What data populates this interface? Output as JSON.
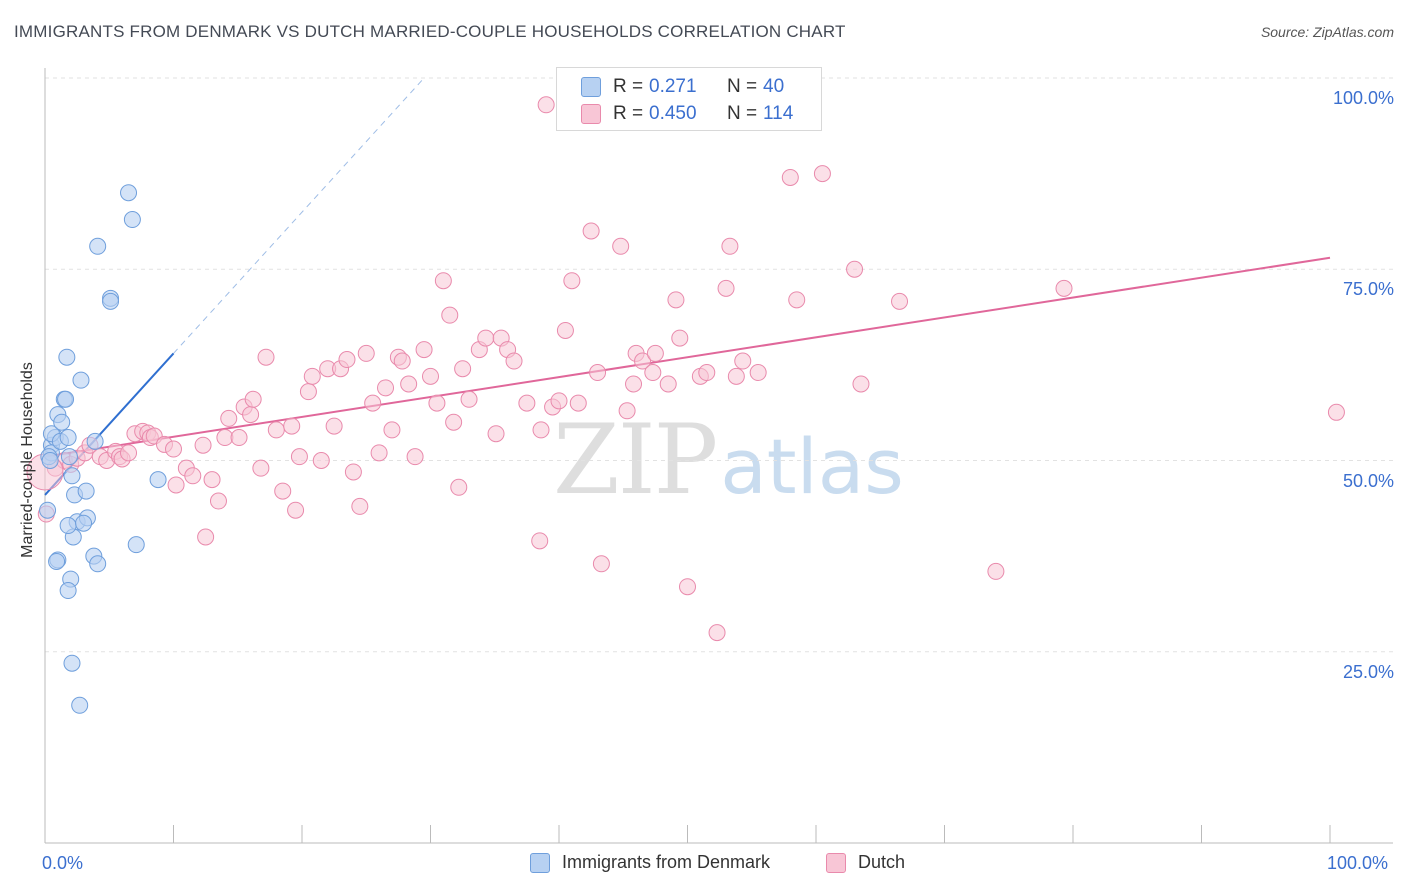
{
  "title": "IMMIGRANTS FROM DENMARK VS DUTCH MARRIED-COUPLE HOUSEHOLDS CORRELATION CHART",
  "source": "Source: ZipAtlas.com",
  "watermark": {
    "zip": "ZIP",
    "atlas": "atlas"
  },
  "legend": {
    "r_label": "R =",
    "n_label": "N =",
    "series": [
      {
        "r": "0.271",
        "n": "40"
      },
      {
        "r": "0.450",
        "n": "114"
      }
    ]
  },
  "chart_data": {
    "type": "scatter",
    "title": "IMMIGRANTS FROM DENMARK VS DUTCH MARRIED-COUPLE HOUSEHOLDS CORRELATION CHART",
    "xlabel": "",
    "ylabel": "Married-couple Households",
    "xlim": [
      0,
      100
    ],
    "ylim": [
      0,
      100
    ],
    "x_tick_labels": [
      "0.0%",
      "100.0%"
    ],
    "y_ticks": [
      25,
      50,
      75,
      100
    ],
    "y_tick_labels": [
      "25.0%",
      "50.0%",
      "75.0%",
      "100.0%"
    ],
    "colors": {
      "blue_fill": "#b7d1f2",
      "blue_stroke": "#6f9fdc",
      "blue_line": "#2f6fd0",
      "pink_fill": "#f8c6d6",
      "pink_stroke": "#e98aac",
      "pink_line": "#e0679a",
      "grid": "#e2e2e2",
      "axis_text": "#3b6fcf"
    },
    "series": [
      {
        "name": "Immigrants from Denmark",
        "trend": {
          "x0": 0.0,
          "y0": 45.5,
          "x1": 10.0,
          "y1": 64.0,
          "dash_to_x": 29.5,
          "dash_to_y": 100.0
        },
        "points": [
          [
            0.5,
            52.0
          ],
          [
            0.5,
            51.0
          ],
          [
            0.3,
            50.5
          ],
          [
            0.8,
            53.0
          ],
          [
            0.5,
            53.5
          ],
          [
            1.0,
            56.0
          ],
          [
            1.3,
            55.0
          ],
          [
            1.2,
            52.5
          ],
          [
            1.5,
            58.0
          ],
          [
            1.6,
            58.0
          ],
          [
            1.7,
            63.5
          ],
          [
            1.8,
            53.0
          ],
          [
            1.9,
            50.5
          ],
          [
            2.1,
            48.0
          ],
          [
            2.3,
            45.5
          ],
          [
            2.5,
            42.0
          ],
          [
            2.2,
            40.0
          ],
          [
            1.8,
            41.5
          ],
          [
            1.0,
            37.0
          ],
          [
            0.9,
            36.8
          ],
          [
            2.0,
            34.5
          ],
          [
            1.8,
            33.0
          ],
          [
            2.1,
            23.5
          ],
          [
            2.7,
            18.0
          ],
          [
            2.8,
            60.5
          ],
          [
            3.3,
            42.5
          ],
          [
            3.2,
            46.0
          ],
          [
            3.8,
            37.5
          ],
          [
            4.1,
            36.5
          ],
          [
            3.9,
            52.5
          ],
          [
            3.0,
            41.8
          ],
          [
            4.1,
            78.0
          ],
          [
            5.1,
            71.2
          ],
          [
            5.1,
            70.8
          ],
          [
            6.5,
            85.0
          ],
          [
            6.8,
            81.5
          ],
          [
            7.1,
            39.0
          ],
          [
            8.8,
            47.5
          ],
          [
            0.2,
            43.5
          ],
          [
            0.4,
            50.0
          ]
        ]
      },
      {
        "name": "Dutch",
        "trend": {
          "x0": 0.0,
          "y0": 50.5,
          "x1": 100.0,
          "y1": 76.5
        },
        "points": [
          [
            0.1,
            43.0
          ],
          [
            0.8,
            49.0
          ],
          [
            1.5,
            50.0
          ],
          [
            2.0,
            49.5
          ],
          [
            2.5,
            50.3
          ],
          [
            3.1,
            51.0
          ],
          [
            3.5,
            52.0
          ],
          [
            4.3,
            50.5
          ],
          [
            4.8,
            50.0
          ],
          [
            5.5,
            51.2
          ],
          [
            5.8,
            50.5
          ],
          [
            6.0,
            50.2
          ],
          [
            6.5,
            51.0
          ],
          [
            7.0,
            53.5
          ],
          [
            7.6,
            53.8
          ],
          [
            8.0,
            53.6
          ],
          [
            8.2,
            53.0
          ],
          [
            8.5,
            53.2
          ],
          [
            9.3,
            52.1
          ],
          [
            10.0,
            51.5
          ],
          [
            10.2,
            46.8
          ],
          [
            11.0,
            49.0
          ],
          [
            11.5,
            48.0
          ],
          [
            12.3,
            52.0
          ],
          [
            12.5,
            40.0
          ],
          [
            13.0,
            47.5
          ],
          [
            13.5,
            44.7
          ],
          [
            14.0,
            53.0
          ],
          [
            14.3,
            55.5
          ],
          [
            15.1,
            53.0
          ],
          [
            15.5,
            57.0
          ],
          [
            16.0,
            56.0
          ],
          [
            16.2,
            58.0
          ],
          [
            16.8,
            49.0
          ],
          [
            17.2,
            63.5
          ],
          [
            18.0,
            54.0
          ],
          [
            18.5,
            46.0
          ],
          [
            19.2,
            54.5
          ],
          [
            19.5,
            43.5
          ],
          [
            19.8,
            50.5
          ],
          [
            20.5,
            59.0
          ],
          [
            20.8,
            61.0
          ],
          [
            21.5,
            50.0
          ],
          [
            22.0,
            62.0
          ],
          [
            22.5,
            54.5
          ],
          [
            23.0,
            62.0
          ],
          [
            23.5,
            63.2
          ],
          [
            24.0,
            48.5
          ],
          [
            24.5,
            44.0
          ],
          [
            25.0,
            64.0
          ],
          [
            25.5,
            57.5
          ],
          [
            26.0,
            51.0
          ],
          [
            26.5,
            59.5
          ],
          [
            27.0,
            54.0
          ],
          [
            27.5,
            63.5
          ],
          [
            27.8,
            63.0
          ],
          [
            28.3,
            60.0
          ],
          [
            28.8,
            50.5
          ],
          [
            29.5,
            64.5
          ],
          [
            30.0,
            61.0
          ],
          [
            30.5,
            57.5
          ],
          [
            31.0,
            73.5
          ],
          [
            31.5,
            69.0
          ],
          [
            31.8,
            55.0
          ],
          [
            32.2,
            46.5
          ],
          [
            32.5,
            62.0
          ],
          [
            33.0,
            58.0
          ],
          [
            33.8,
            64.5
          ],
          [
            34.3,
            66.0
          ],
          [
            35.1,
            53.5
          ],
          [
            35.5,
            66.0
          ],
          [
            36.0,
            64.5
          ],
          [
            36.5,
            63.0
          ],
          [
            37.5,
            57.5
          ],
          [
            38.5,
            39.5
          ],
          [
            38.6,
            54.0
          ],
          [
            39.0,
            96.5
          ],
          [
            39.5,
            57.0
          ],
          [
            40.0,
            57.8
          ],
          [
            40.5,
            67.0
          ],
          [
            41.0,
            73.5
          ],
          [
            41.5,
            57.5
          ],
          [
            42.5,
            80.0
          ],
          [
            43.0,
            61.5
          ],
          [
            43.3,
            36.5
          ],
          [
            44.8,
            78.0
          ],
          [
            45.3,
            56.5
          ],
          [
            45.8,
            60.0
          ],
          [
            46.0,
            64.0
          ],
          [
            46.5,
            63.0
          ],
          [
            47.3,
            61.5
          ],
          [
            47.5,
            64.0
          ],
          [
            48.5,
            60.0
          ],
          [
            49.1,
            71.0
          ],
          [
            49.4,
            66.0
          ],
          [
            50.0,
            33.5
          ],
          [
            51.0,
            61.0
          ],
          [
            51.5,
            61.5
          ],
          [
            52.3,
            27.5
          ],
          [
            53.0,
            72.5
          ],
          [
            53.3,
            78.0
          ],
          [
            53.8,
            61.0
          ],
          [
            54.3,
            63.0
          ],
          [
            55.5,
            61.5
          ],
          [
            58.0,
            87.0
          ],
          [
            58.5,
            71.0
          ],
          [
            60.5,
            87.5
          ],
          [
            63.0,
            75.0
          ],
          [
            63.5,
            60.0
          ],
          [
            66.5,
            70.8
          ],
          [
            74.0,
            35.5
          ],
          [
            79.3,
            72.5
          ],
          [
            100.5,
            56.3
          ],
          [
            0.0,
            48.5
          ]
        ]
      }
    ]
  },
  "bottom_legend": [
    "Immigrants from Denmark",
    "Dutch"
  ]
}
